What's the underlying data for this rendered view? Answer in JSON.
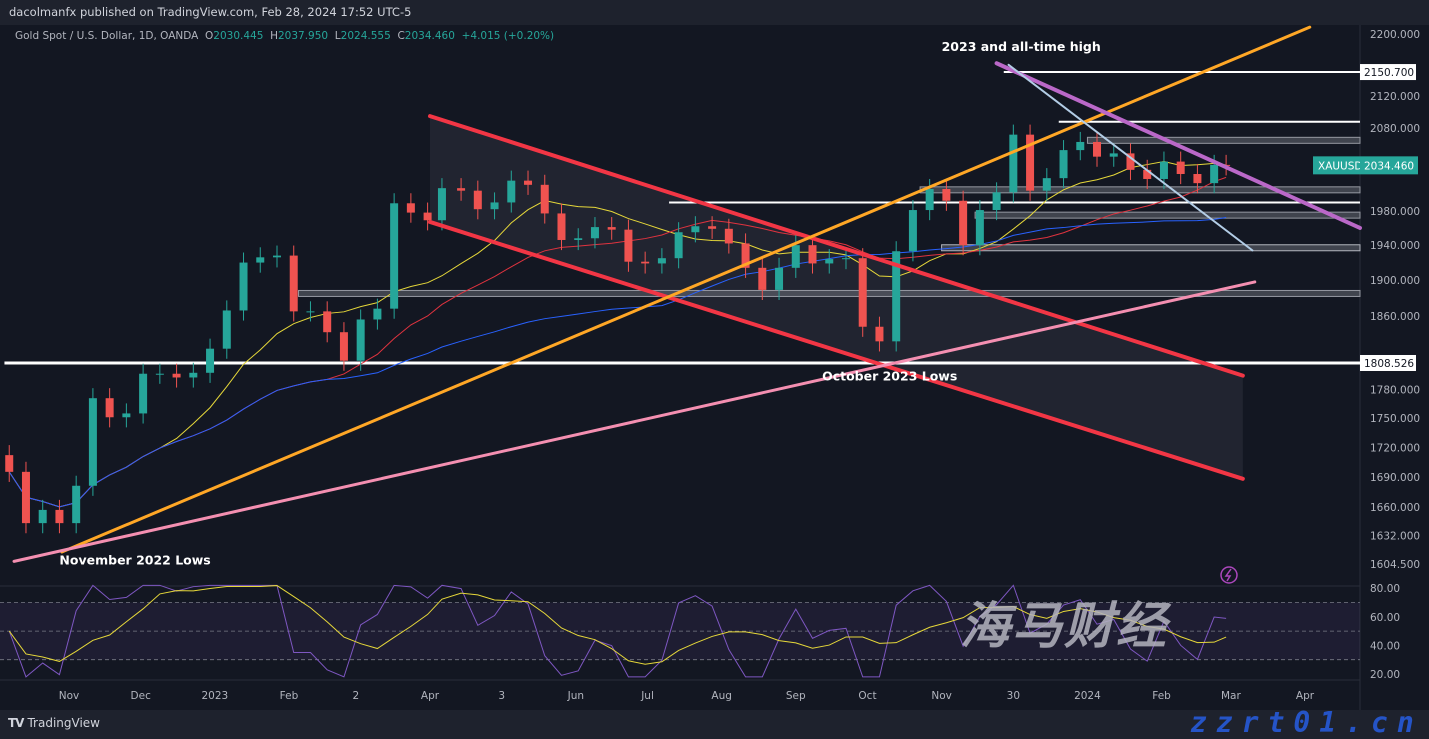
{
  "header": {
    "published": "dacolmanfx published on TradingView.com, Feb 28, 2024 17:52 UTC-5"
  },
  "legend": {
    "symbol": "Gold Spot / U.S. Dollar, 1D, OANDA",
    "open_label": "O",
    "open": "2030.445",
    "high_label": "H",
    "high": "2037.950",
    "low_label": "L",
    "low": "2024.555",
    "close_label": "C",
    "close": "2034.460",
    "change": "+4.015 (+0.20%)"
  },
  "colors": {
    "background": "#131722",
    "up": "#26a69a",
    "down": "#ef5350",
    "sma_fast": "#e6d83a",
    "sma_mid": "#e0333f",
    "sma_slow": "#2962ff",
    "rsi": "#7e57c2",
    "rsi_ma": "#e6d83a"
  },
  "footer": {
    "brand": "TradingView",
    "brand_icon": "tradingview-logo-icon"
  },
  "watermark": {
    "logo_text": "海马财经",
    "site": "zzrt01.cn"
  },
  "chart_data": {
    "type": "candlestick",
    "symbol": "XAUUSD",
    "last_price_label": "2034.460",
    "y_scale": "log",
    "ylim": [
      1604.5,
      2200
    ],
    "y_ticks": [
      "2200.000",
      "2120.000",
      "2080.000",
      "1980.000",
      "1940.000",
      "1900.000",
      "1860.000",
      "1780.000",
      "1750.000",
      "1720.000",
      "1690.000",
      "1660.000",
      "1632.000",
      "1604.500"
    ],
    "y_tick_values": [
      2200,
      2120,
      2080,
      1980,
      1940,
      1900,
      1860,
      1780,
      1750,
      1720,
      1690,
      1660,
      1632,
      1604.5
    ],
    "x_ticks": [
      {
        "label": "Nov",
        "date": "2022-11-01"
      },
      {
        "label": "Dec",
        "date": "2022-12-01"
      },
      {
        "label": "2023",
        "date": "2023-01-01"
      },
      {
        "label": "Feb",
        "date": "2023-02-01"
      },
      {
        "label": "2",
        "date": "2023-03-01"
      },
      {
        "label": "Apr",
        "date": "2023-04-01"
      },
      {
        "label": "3",
        "date": "2023-05-01"
      },
      {
        "label": "Jun",
        "date": "2023-06-01"
      },
      {
        "label": "Jul",
        "date": "2023-07-01"
      },
      {
        "label": "Aug",
        "date": "2023-08-01"
      },
      {
        "label": "Sep",
        "date": "2023-09-01"
      },
      {
        "label": "Oct",
        "date": "2023-10-01"
      },
      {
        "label": "Nov",
        "date": "2023-11-01"
      },
      {
        "label": "30",
        "date": "2023-12-01"
      },
      {
        "label": "2024",
        "date": "2024-01-01"
      },
      {
        "label": "Feb",
        "date": "2024-02-01"
      },
      {
        "label": "Mar",
        "date": "2024-03-01"
      },
      {
        "label": "Apr",
        "date": "2024-04-01"
      }
    ],
    "x_range": [
      "2022-10-05",
      "2024-04-24"
    ],
    "weekly_closes": [
      [
        "2022-10-07",
        1695
      ],
      [
        "2022-10-14",
        1644
      ],
      [
        "2022-10-21",
        1657
      ],
      [
        "2022-10-28",
        1644
      ],
      [
        "2022-11-04",
        1681
      ],
      [
        "2022-11-11",
        1771
      ],
      [
        "2022-11-18",
        1751
      ],
      [
        "2022-11-25",
        1755
      ],
      [
        "2022-12-02",
        1797
      ],
      [
        "2022-12-09",
        1797
      ],
      [
        "2022-12-16",
        1793
      ],
      [
        "2022-12-23",
        1798
      ],
      [
        "2022-12-30",
        1824
      ],
      [
        "2023-01-06",
        1866
      ],
      [
        "2023-01-13",
        1920
      ],
      [
        "2023-01-20",
        1926
      ],
      [
        "2023-01-27",
        1928
      ],
      [
        "2023-02-03",
        1865
      ],
      [
        "2023-02-10",
        1865
      ],
      [
        "2023-02-17",
        1842
      ],
      [
        "2023-02-24",
        1811
      ],
      [
        "2023-03-03",
        1856
      ],
      [
        "2023-03-10",
        1868
      ],
      [
        "2023-03-17",
        1989
      ],
      [
        "2023-03-24",
        1978
      ],
      [
        "2023-03-31",
        1969
      ],
      [
        "2023-04-06",
        2007
      ],
      [
        "2023-04-14",
        2004
      ],
      [
        "2023-04-21",
        1982
      ],
      [
        "2023-04-28",
        1990
      ],
      [
        "2023-05-05",
        2016
      ],
      [
        "2023-05-12",
        2011
      ],
      [
        "2023-05-19",
        1977
      ],
      [
        "2023-05-26",
        1946
      ],
      [
        "2023-06-02",
        1948
      ],
      [
        "2023-06-09",
        1961
      ],
      [
        "2023-06-16",
        1958
      ],
      [
        "2023-06-23",
        1921
      ],
      [
        "2023-06-30",
        1919
      ],
      [
        "2023-07-07",
        1925
      ],
      [
        "2023-07-14",
        1955
      ],
      [
        "2023-07-21",
        1962
      ],
      [
        "2023-07-28",
        1959
      ],
      [
        "2023-08-04",
        1942
      ],
      [
        "2023-08-11",
        1914
      ],
      [
        "2023-08-18",
        1889
      ],
      [
        "2023-08-25",
        1914
      ],
      [
        "2023-09-01",
        1940
      ],
      [
        "2023-09-08",
        1919
      ],
      [
        "2023-09-15",
        1924
      ],
      [
        "2023-09-22",
        1925
      ],
      [
        "2023-09-29",
        1848
      ],
      [
        "2023-10-06",
        1832
      ],
      [
        "2023-10-13",
        1933
      ],
      [
        "2023-10-20",
        1981
      ],
      [
        "2023-10-27",
        2006
      ],
      [
        "2023-11-03",
        1992
      ],
      [
        "2023-11-10",
        1940
      ],
      [
        "2023-11-17",
        1981
      ],
      [
        "2023-11-24",
        2002
      ],
      [
        "2023-12-01",
        2072
      ],
      [
        "2023-12-08",
        2004
      ],
      [
        "2023-12-15",
        2019
      ],
      [
        "2023-12-22",
        2053
      ],
      [
        "2023-12-29",
        2063
      ],
      [
        "2024-01-05",
        2045
      ],
      [
        "2024-01-12",
        2049
      ],
      [
        "2024-01-19",
        2029
      ],
      [
        "2024-01-26",
        2018
      ],
      [
        "2024-02-02",
        2039
      ],
      [
        "2024-02-09",
        2024
      ],
      [
        "2024-02-16",
        2013
      ],
      [
        "2024-02-23",
        2035
      ],
      [
        "2024-02-28",
        2034.46
      ]
    ],
    "indicators": [
      "SMA 50",
      "SMA 100",
      "SMA 200",
      "RSI 14 with MA"
    ],
    "horizontal_levels": [
      {
        "price": 2150.7,
        "from": "2023-11-27",
        "label": "2150.700",
        "color": "#ffffff"
      },
      {
        "price": 2088,
        "from": "2023-12-20",
        "color": "#ffffff"
      },
      {
        "price": 2065,
        "from": "2024-01-01",
        "color": "#9598a1",
        "band": true
      },
      {
        "price": 2005,
        "from": "2023-10-23",
        "color": "#9598a1",
        "band": true
      },
      {
        "price": 1990,
        "from": "2023-07-10",
        "color": "#ffffff"
      },
      {
        "price": 1975,
        "from": "2023-11-15",
        "color": "#9598a1",
        "band": true
      },
      {
        "price": 1937,
        "from": "2023-11-01",
        "color": "#b2b5be",
        "band": true
      },
      {
        "price": 1885,
        "from": "2023-02-05",
        "color": "#9598a1",
        "band": true
      },
      {
        "price": 1808.526,
        "from": "2022-10-05",
        "label": "1808.526",
        "color": "#ffffff",
        "thick": true
      }
    ],
    "trendlines": [
      {
        "name": "channel-upper",
        "from": [
          "2023-04-01",
          2095
        ],
        "to": [
          "2024-03-06",
          1795
        ],
        "color": "#f23645"
      },
      {
        "name": "channel-lower",
        "from": [
          "2023-04-01",
          1967
        ],
        "to": [
          "2024-03-06",
          1688
        ],
        "color": "#f23645"
      },
      {
        "name": "orange-support",
        "from": [
          "2022-10-29",
          1616
        ],
        "to": [
          "2024-04-03",
          2209
        ],
        "color": "#ffa726"
      },
      {
        "name": "pink-support",
        "from": [
          "2022-10-09",
          1607
        ],
        "to": [
          "2024-03-11",
          1898
        ],
        "color": "#f48fb1"
      },
      {
        "name": "purple-resistance",
        "from": [
          "2023-11-24",
          2162
        ],
        "to": [
          "2024-04-24",
          1960
        ],
        "color": "#ba68c8"
      },
      {
        "name": "lightblue-line",
        "from": [
          "2023-11-29",
          2160
        ],
        "to": [
          "2024-03-10",
          1934
        ],
        "color": "#b3cde6"
      }
    ],
    "annotations": [
      {
        "text": "2023 and all-time high",
        "date": "2023-11-01",
        "price": 2178
      },
      {
        "text": "October 2023 Lows",
        "date": "2023-09-12",
        "price": 1790
      },
      {
        "text": "November 2022 Lows",
        "date": "2022-10-28",
        "price": 1604
      }
    ],
    "rsi": {
      "ticks": [
        "80.00",
        "60.00",
        "40.00",
        "20.00"
      ],
      "tick_values": [
        80,
        60,
        40,
        20
      ],
      "bands": [
        70,
        50,
        30
      ]
    }
  }
}
